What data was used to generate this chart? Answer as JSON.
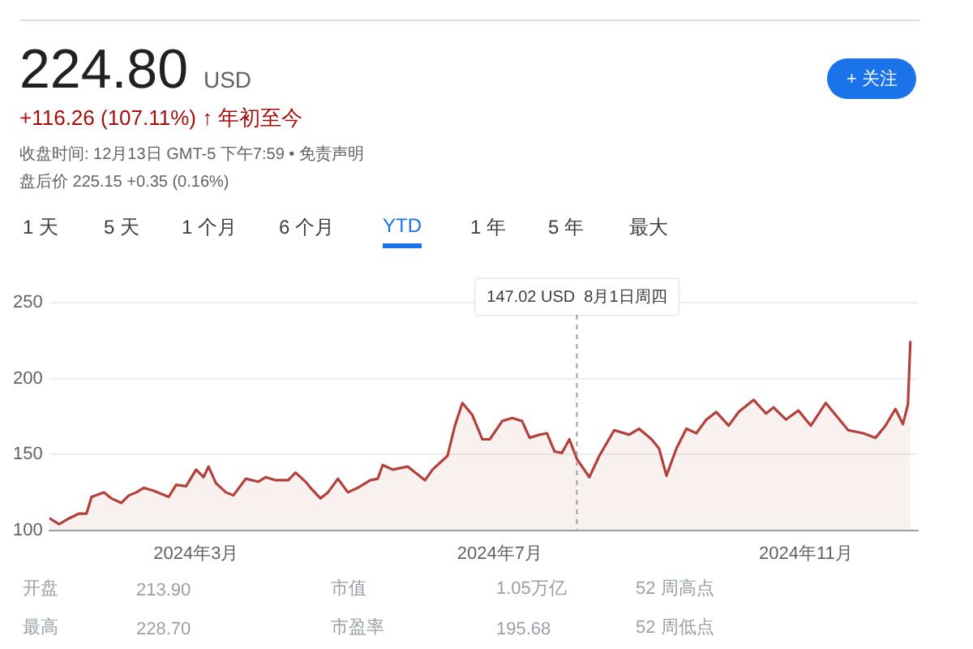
{
  "chart_data": {
    "type": "area",
    "title": "224.80 USD",
    "subtitle": "+116.26 (107.11%) ↑ 年初至今",
    "annotations": [
      "收盘时间: 12月13日 GMT-5 下午7:59 • 免责声明",
      "盘后价 225.15 +0.35 (0.16%)",
      "1 天",
      "5 天",
      "1 个月",
      "6 个月",
      "YTD",
      "1 年",
      "5 年",
      "最大",
      "+ 关注",
      "开盘",
      "213.90",
      "市值",
      "1.05万亿",
      "52 周高点",
      "最高",
      "228.70",
      "市盈率",
      "195.68",
      "52 周低点"
    ],
    "x": [
      "2024-01-02",
      "2024-01-06",
      "2024-01-09",
      "2024-01-14",
      "2024-01-17",
      "2024-01-19",
      "2024-01-24",
      "2024-01-27",
      "2024-01-31",
      "2024-02-03",
      "2024-02-06",
      "2024-02-09",
      "2024-02-13",
      "2024-02-16",
      "2024-02-19",
      "2024-02-22",
      "2024-02-26",
      "2024-03-01",
      "2024-03-04",
      "2024-03-06",
      "2024-03-09",
      "2024-03-13",
      "2024-03-16",
      "2024-03-21",
      "2024-03-26",
      "2024-03-29",
      "2024-04-02",
      "2024-04-07",
      "2024-04-10",
      "2024-04-14",
      "2024-04-16",
      "2024-04-20",
      "2024-04-23",
      "2024-04-27",
      "2024-05-01",
      "2024-05-05",
      "2024-05-10",
      "2024-05-13",
      "2024-05-15",
      "2024-05-19",
      "2024-05-25",
      "2024-06-01",
      "2024-06-04",
      "2024-06-10",
      "2024-06-13",
      "2024-06-16",
      "2024-06-20",
      "2024-06-24",
      "2024-06-27",
      "2024-07-02",
      "2024-07-06",
      "2024-07-10",
      "2024-07-13",
      "2024-07-17",
      "2024-07-20",
      "2024-07-23",
      "2024-07-26",
      "2024-07-29",
      "2024-08-01",
      "2024-08-06",
      "2024-08-10",
      "2024-08-16",
      "2024-08-22",
      "2024-08-26",
      "2024-08-31",
      "2024-09-03",
      "2024-09-06",
      "2024-09-10",
      "2024-09-14",
      "2024-09-18",
      "2024-09-22",
      "2024-09-26",
      "2024-10-01",
      "2024-10-05",
      "2024-10-11",
      "2024-10-16",
      "2024-10-19",
      "2024-10-24",
      "2024-10-29",
      "2024-11-03",
      "2024-11-09",
      "2024-11-18",
      "2024-11-24",
      "2024-11-29",
      "2024-12-03",
      "2024-12-07",
      "2024-12-10",
      "2024-12-12",
      "2024-12-13"
    ],
    "series": [
      {
        "color": "#b3403a",
        "values": [
          108,
          104,
          107,
          111,
          111,
          122,
          125,
          121,
          118,
          123,
          125,
          128,
          126,
          124,
          122,
          130,
          129,
          140,
          135,
          142,
          131,
          125,
          123,
          134,
          132,
          135,
          133,
          133,
          138,
          132,
          128,
          121,
          125,
          134,
          125,
          128,
          133,
          134,
          143,
          140,
          142,
          133,
          140,
          149,
          169,
          184,
          176,
          160,
          160,
          172,
          174,
          172,
          161,
          163,
          164,
          152,
          151,
          160,
          147.02,
          135,
          149,
          166,
          163,
          167,
          160,
          154,
          136,
          154,
          167,
          164,
          173,
          178,
          169,
          178,
          186,
          177,
          181,
          173,
          179,
          169,
          184,
          166,
          164,
          161,
          169,
          180,
          170,
          183,
          224.8
        ]
      }
    ],
    "xlim": [
      "2024-01-02",
      "2024-12-16"
    ],
    "xticks": [
      {
        "value": "2024-03-01",
        "label": "2024年3月"
      },
      {
        "value": "2024-07-01",
        "label": "2024年7月"
      },
      {
        "value": "2024-11-01",
        "label": "2024年11月"
      }
    ],
    "ylim": [
      100,
      255
    ],
    "yticks": [
      100,
      150,
      200,
      250
    ],
    "ref_lines": [
      {
        "axis": "x",
        "value": "2024-08-01",
        "label": "147.02 USD  8月1日周四",
        "color": "#9aa0a6",
        "line_style": "dashed"
      }
    ],
    "grid": "y",
    "legend": false,
    "marker": "none"
  }
}
